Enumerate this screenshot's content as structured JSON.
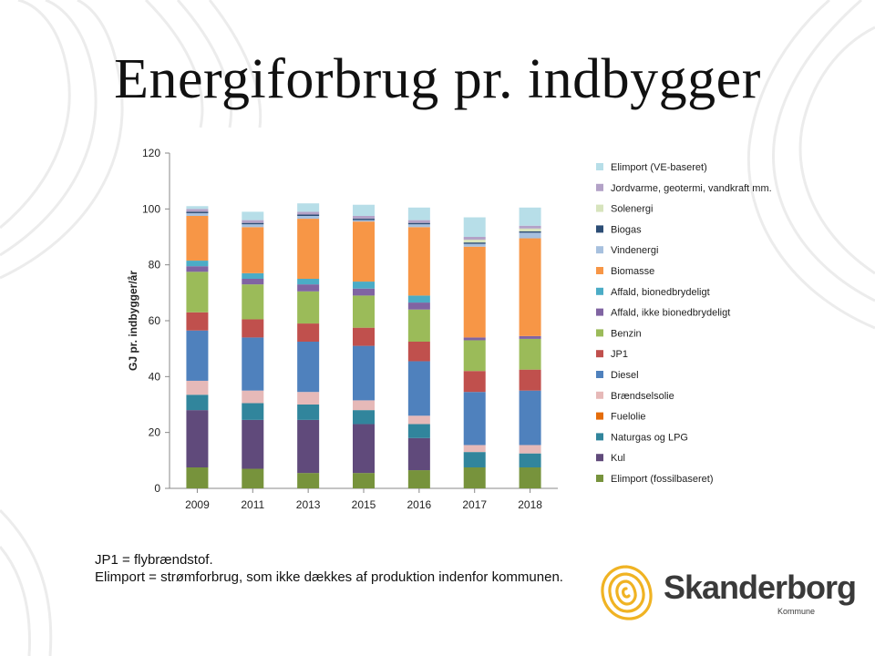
{
  "slide": {
    "title": "Energiforbrug pr. indbygger",
    "notes": [
      "JP1 = flybrændstof.",
      "Elimport = strømforbrug, som ikke dækkes af produktion indenfor kommunen."
    ],
    "logo": {
      "name": "Skanderborg",
      "sub": "Kommune",
      "icon": "fingerprint-logo-icon"
    }
  },
  "colors": {
    "elimport_fossil": "#77933c",
    "kul": "#604a7b",
    "naturgas": "#31859c",
    "fuelolie": "#e46c0a",
    "braendselsolie": "#e6b9b8",
    "diesel": "#4f81bd",
    "jp1": "#c0504d",
    "benzin": "#9bbb59",
    "affald_ikke": "#8064a2",
    "affald_bio": "#4bacc6",
    "biomasse": "#f79646",
    "vindenergi": "#a7c0de",
    "biogas": "#2c4d75",
    "solenergi": "#d7e4bd",
    "jordvarme": "#b3a2c7",
    "elimport_ve": "#b7dee8"
  },
  "chart_data": {
    "type": "bar",
    "stacked": true,
    "categories": [
      "2009",
      "2011",
      "2013",
      "2015",
      "2016",
      "2017",
      "2018"
    ],
    "ylabel": "GJ pr. indbygger/år",
    "xlabel": "",
    "ylim": [
      0,
      120
    ],
    "yticks": [
      0,
      20,
      40,
      60,
      80,
      100,
      120
    ],
    "grid": false,
    "legend_position": "right",
    "series": [
      {
        "name": "Elimport (fossilbaseret)",
        "color_key": "elimport_fossil",
        "values": [
          7.5,
          7,
          5.5,
          5.5,
          6.5,
          7.5,
          7.5
        ]
      },
      {
        "name": "Kul",
        "color_key": "kul",
        "values": [
          20.5,
          17.5,
          19,
          17.5,
          11.5,
          0,
          0
        ]
      },
      {
        "name": "Naturgas og LPG",
        "color_key": "naturgas",
        "values": [
          5.5,
          6,
          5.5,
          5,
          5,
          5.5,
          5
        ]
      },
      {
        "name": "Fuelolie",
        "color_key": "fuelolie",
        "values": [
          0,
          0,
          0,
          0,
          0,
          0,
          0
        ]
      },
      {
        "name": "Brændselsolie",
        "color_key": "braendselsolie",
        "values": [
          5,
          4.5,
          4.5,
          3.5,
          3,
          2.5,
          3
        ]
      },
      {
        "name": "Diesel",
        "color_key": "diesel",
        "values": [
          18,
          19,
          18,
          19.5,
          19.5,
          19,
          19.5
        ]
      },
      {
        "name": "JP1",
        "color_key": "jp1",
        "values": [
          6.5,
          6.5,
          6.5,
          6.5,
          7,
          7.5,
          7.5
        ]
      },
      {
        "name": "Benzin",
        "color_key": "benzin",
        "values": [
          14.5,
          12.5,
          11.5,
          11.5,
          11.5,
          11,
          11
        ]
      },
      {
        "name": "Affald, ikke bionedbrydeligt",
        "color_key": "affald_ikke",
        "values": [
          2,
          2,
          2.5,
          2.5,
          2.5,
          1,
          1
        ]
      },
      {
        "name": "Affald, bionedbrydeligt",
        "color_key": "affald_bio",
        "values": [
          2,
          2,
          2,
          2.5,
          2.5,
          0,
          0
        ]
      },
      {
        "name": "Biomasse",
        "color_key": "biomasse",
        "values": [
          16,
          16.5,
          21.5,
          21.5,
          24.5,
          32.5,
          35
        ]
      },
      {
        "name": "Vindenergi",
        "color_key": "vindenergi",
        "values": [
          1,
          1,
          1,
          0.5,
          1,
          1,
          2
        ]
      },
      {
        "name": "Biogas",
        "color_key": "biogas",
        "values": [
          0.5,
          0.5,
          0.5,
          0.5,
          0.5,
          0.5,
          0.5
        ]
      },
      {
        "name": "Solenergi",
        "color_key": "solenergi",
        "values": [
          0,
          0,
          0,
          0,
          0,
          1,
          1
        ]
      },
      {
        "name": "Jordvarme, geotermi, vandkraft mm.",
        "color_key": "jordvarme",
        "values": [
          1,
          1,
          1,
          1,
          1,
          1,
          1
        ]
      },
      {
        "name": "Elimport (VE-baseret)",
        "color_key": "elimport_ve",
        "values": [
          1,
          3,
          3,
          4,
          4.5,
          7,
          6.5
        ]
      }
    ]
  }
}
